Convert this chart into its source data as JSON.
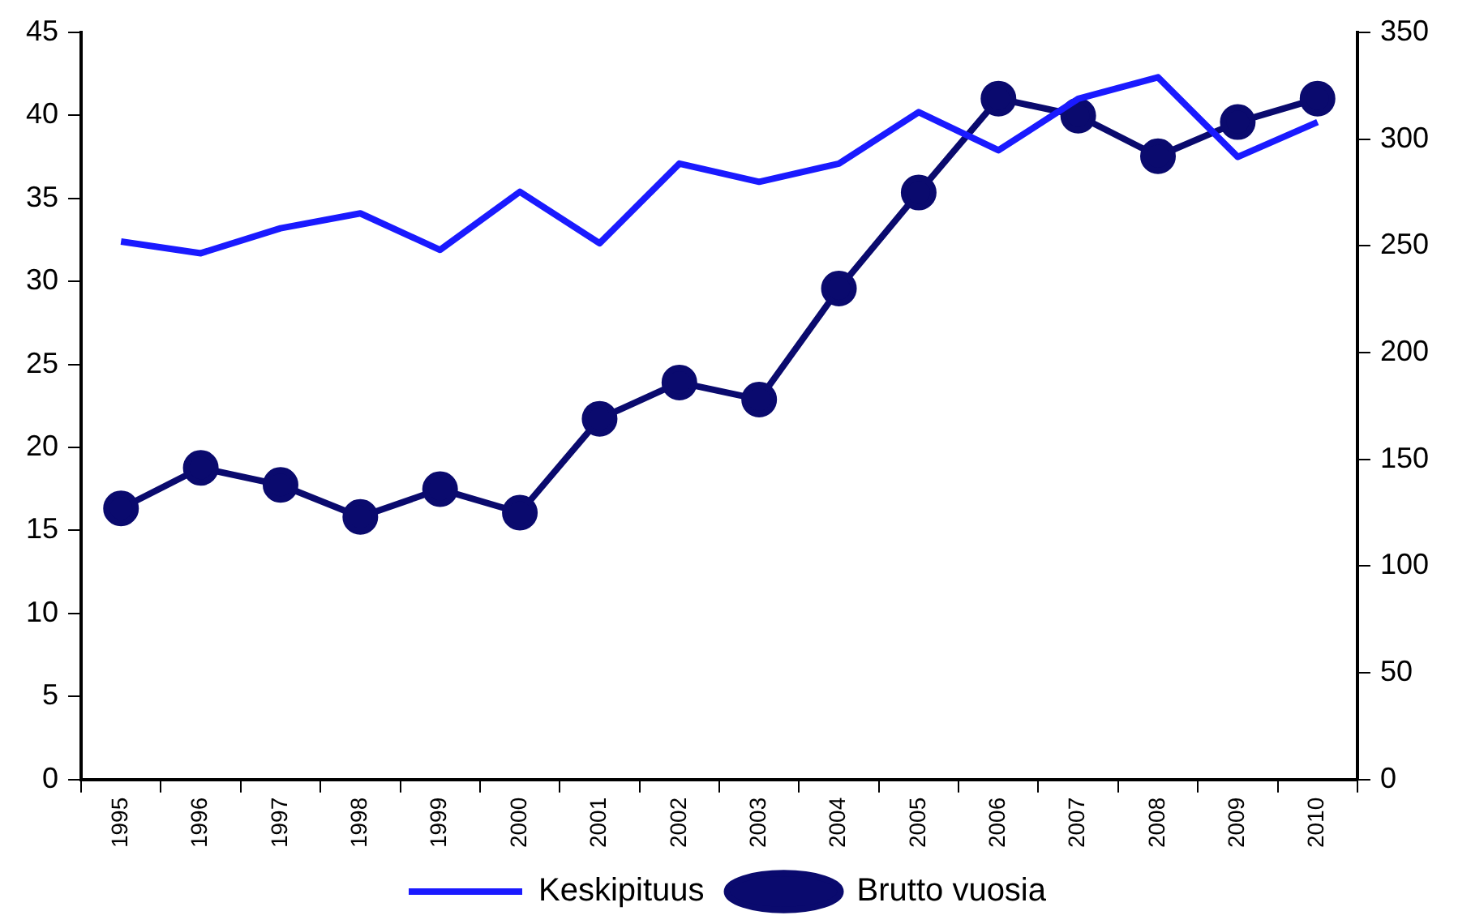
{
  "chart_data": {
    "type": "line",
    "categories": [
      "1995",
      "1996",
      "1997",
      "1998",
      "1999",
      "2000",
      "2001",
      "2002",
      "2003",
      "2004",
      "2005",
      "2006",
      "2007",
      "2008",
      "2009",
      "2010"
    ],
    "series": [
      {
        "name": "Keskipituus",
        "color": "#1a1aff",
        "marker": "none",
        "values": [
          32.4,
          31.7,
          33.2,
          34.1,
          31.9,
          35.4,
          32.3,
          37.1,
          36.0,
          37.1,
          40.2,
          37.9,
          41.0,
          42.3,
          37.5,
          39.6
        ]
      },
      {
        "name": "Brutto vuosia",
        "color": "#0a0a6e",
        "marker": "circle",
        "axis": "y2",
        "values": [
          127,
          146,
          138,
          123,
          136,
          125,
          169,
          186,
          178,
          230,
          275,
          319,
          311,
          292,
          308,
          319
        ]
      }
    ],
    "ylim": [
      0,
      45
    ],
    "yticks": [
      0,
      5,
      10,
      15,
      20,
      25,
      30,
      35,
      40,
      45
    ],
    "y2lim": [
      0,
      350
    ],
    "y2ticks": [
      0,
      50,
      100,
      150,
      200,
      250,
      300,
      350
    ],
    "grid": false,
    "legend": "bottom"
  }
}
